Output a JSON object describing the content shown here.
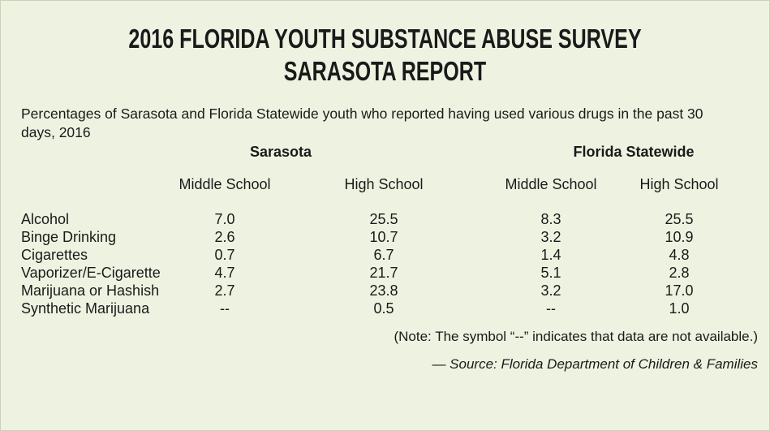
{
  "header": {
    "title": [
      "2016 FLORIDA YOUTH SUBSTANCE ABUSE SURVEY",
      "SARASOTA REPORT"
    ],
    "subtitle": "Percentages of Sarasota and Florida Statewide youth who reported having used various drugs in the past 30 days, 2016"
  },
  "table": {
    "groups": [
      "Sarasota",
      "Florida Statewide"
    ],
    "columns": [
      "Middle School",
      "High School",
      "Middle School",
      "High School"
    ],
    "rows": [
      [
        "Alcohol",
        "7.0",
        "25.5",
        "8.3",
        "25.5"
      ],
      [
        "Binge Drinking",
        "2.6",
        "10.7",
        "3.2",
        "10.9"
      ],
      [
        "Cigarettes",
        "0.7",
        "6.7",
        "1.4",
        "4.8"
      ],
      [
        "Vaporizer/E-Cigarette",
        "4.7",
        "21.7",
        "5.1",
        "2.8"
      ],
      [
        "Marijuana or Hashish",
        "2.7",
        "23.8",
        "3.2",
        "17.0"
      ],
      [
        "Synthetic Marijuana",
        "--",
        "0.5",
        "--",
        "1.0"
      ]
    ]
  },
  "footer": {
    "note": "(Note: The symbol “--” indicates that data are not available.)",
    "source": "— Source: Florida Department of Children & Families"
  }
}
